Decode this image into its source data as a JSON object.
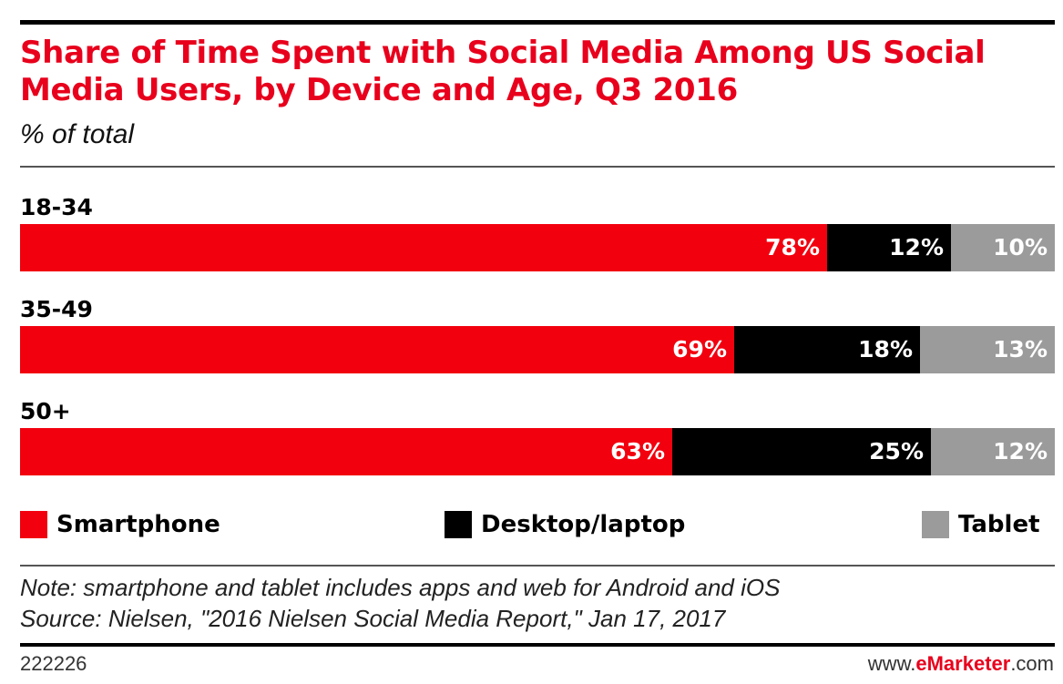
{
  "colors": {
    "smartphone": "#f2000e",
    "desktop": "#000000",
    "tablet": "#9b9b9b",
    "accent": "#e8001c"
  },
  "chart_data": {
    "type": "bar",
    "orientation": "horizontal",
    "stacked": true,
    "title": "Share of Time Spent with Social Media Among US Social Media Users, by Device and Age, Q3 2016",
    "subtitle": "% of total",
    "categories": [
      "18-34",
      "35-49",
      "50+"
    ],
    "series": [
      {
        "name": "Smartphone",
        "values": [
          78,
          69,
          63
        ],
        "labels": [
          "78%",
          "69%",
          "63%"
        ]
      },
      {
        "name": "Desktop/laptop",
        "values": [
          12,
          18,
          25
        ],
        "labels": [
          "12%",
          "18%",
          "25%"
        ]
      },
      {
        "name": "Tablet",
        "values": [
          10,
          13,
          12
        ],
        "labels": [
          "10%",
          "13%",
          "12%"
        ]
      }
    ],
    "xlim": [
      0,
      100
    ],
    "legend_position": "bottom"
  },
  "footer": {
    "note": "Note: smartphone and tablet includes apps and web for Android and iOS",
    "source": "Source: Nielsen, \"2016 Nielsen Social Media Report,\" Jan 17, 2017",
    "chart_id": "222226",
    "site_prefix": "www.",
    "site_brand": "eMarketer",
    "site_suffix": ".com"
  }
}
